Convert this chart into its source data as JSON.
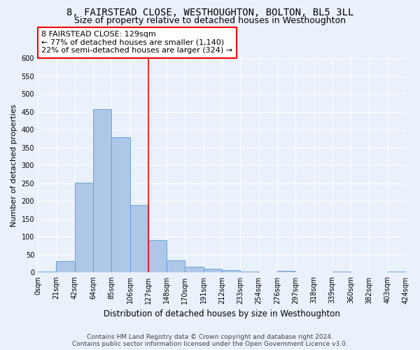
{
  "title": "8, FAIRSTEAD CLOSE, WESTHOUGHTON, BOLTON, BL5 3LL",
  "subtitle": "Size of property relative to detached houses in Westhoughton",
  "xlabel": "Distribution of detached houses by size in Westhoughton",
  "ylabel": "Number of detached properties",
  "footer_line1": "Contains HM Land Registry data © Crown copyright and database right 2024.",
  "footer_line2": "Contains public sector information licensed under the Open Government Licence v3.0.",
  "bin_labels": [
    "0sqm",
    "21sqm",
    "42sqm",
    "64sqm",
    "85sqm",
    "106sqm",
    "127sqm",
    "148sqm",
    "170sqm",
    "191sqm",
    "212sqm",
    "233sqm",
    "254sqm",
    "276sqm",
    "297sqm",
    "318sqm",
    "339sqm",
    "360sqm",
    "382sqm",
    "403sqm",
    "424sqm"
  ],
  "bar_values": [
    2,
    33,
    251,
    458,
    380,
    190,
    91,
    35,
    17,
    11,
    6,
    2,
    0,
    5,
    0,
    0,
    2,
    0,
    0,
    2
  ],
  "bar_color": "#aec6e8",
  "bar_edge_color": "#5b9bd5",
  "property_line_x": 6,
  "property_line_color": "red",
  "annotation_text": "8 FAIRSTEAD CLOSE: 129sqm\n← 77% of detached houses are smaller (1,140)\n22% of semi-detached houses are larger (324) →",
  "annotation_box_color": "white",
  "annotation_box_edge_color": "red",
  "ylim": [
    0,
    600
  ],
  "yticks": [
    0,
    50,
    100,
    150,
    200,
    250,
    300,
    350,
    400,
    450,
    500,
    550,
    600
  ],
  "background_color": "#eaf1fb",
  "plot_background": "#eaf1fb",
  "title_fontsize": 10,
  "subtitle_fontsize": 9,
  "xlabel_fontsize": 8.5,
  "ylabel_fontsize": 8,
  "tick_fontsize": 7,
  "annotation_fontsize": 8,
  "footer_fontsize": 6.5
}
